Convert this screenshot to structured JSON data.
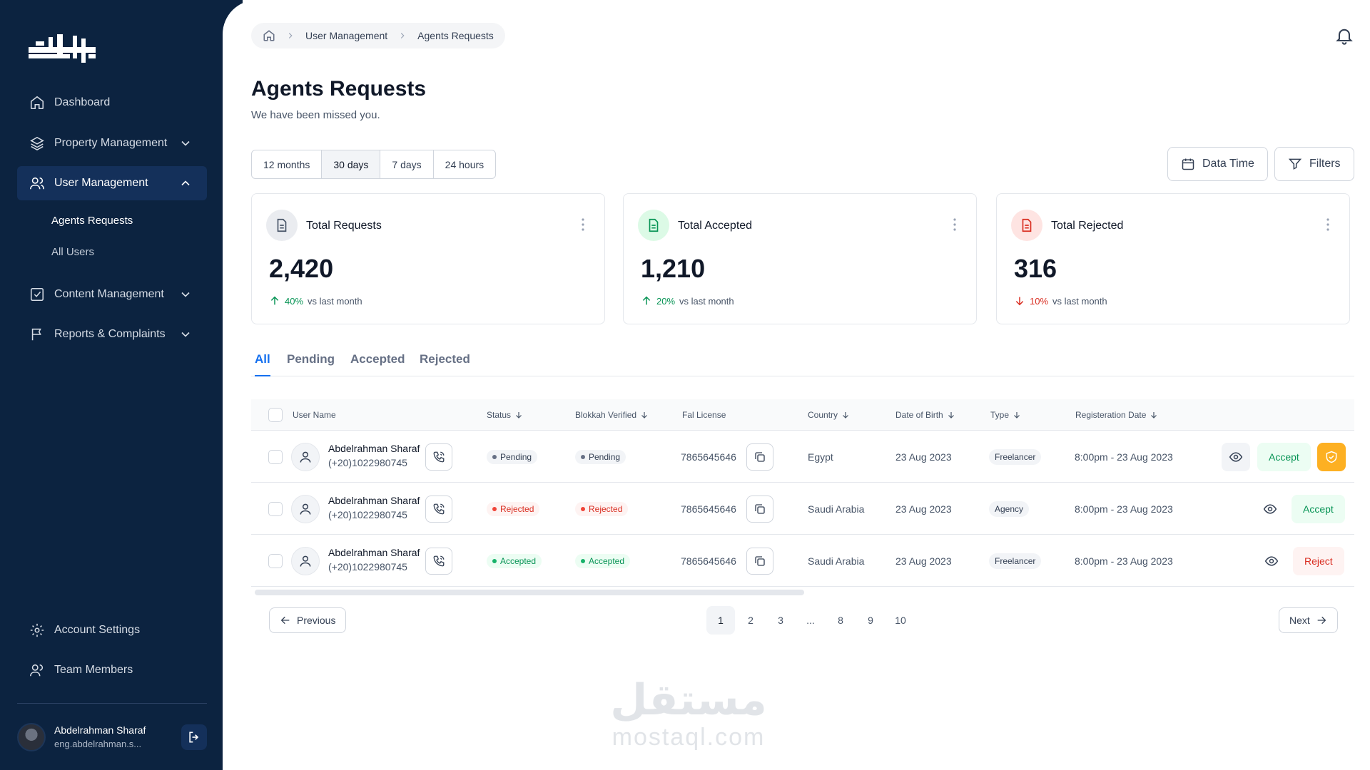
{
  "sidebar": {
    "nav": [
      {
        "label": "Dashboard"
      },
      {
        "label": "Property Management"
      },
      {
        "label": "User Management"
      },
      {
        "label": "Content Management"
      },
      {
        "label": "Reports & Complaints"
      }
    ],
    "sub_items": [
      {
        "label": "Agents Requests"
      },
      {
        "label": "All Users"
      }
    ],
    "bottom": [
      {
        "label": "Account Settings"
      },
      {
        "label": "Team Members"
      }
    ],
    "profile": {
      "name": "Abdelrahman Sharaf",
      "email": "eng.abdelrahman.s..."
    }
  },
  "breadcrumb": [
    "User Management",
    "Agents Requests"
  ],
  "header": {
    "title": "Agents Requests",
    "subtitle": "We have been missed you."
  },
  "range_filters": [
    "12 months",
    "30 days",
    "7 days",
    "24 hours"
  ],
  "range_selected": "30 days",
  "toolbar": {
    "date_label": "Data Time",
    "filters_label": "Filters"
  },
  "stats": [
    {
      "title": "Total Requests",
      "value": "2,420",
      "change": "40%",
      "direction": "up",
      "note": "vs last month"
    },
    {
      "title": "Total Accepted",
      "value": "1,210",
      "change": "20%",
      "direction": "up",
      "note": "vs last month"
    },
    {
      "title": "Total Rejected",
      "value": "316",
      "change": "10%",
      "direction": "down",
      "note": "vs last month"
    }
  ],
  "tabs": [
    "All",
    "Pending",
    "Accepted",
    "Rejected"
  ],
  "active_tab": "All",
  "table": {
    "columns": [
      "User Name",
      "Status",
      "Blokkah Verified",
      "Fal License",
      "Country",
      "Date of Birth",
      "Type",
      "Registeration Date"
    ],
    "rows": [
      {
        "name": "Abdelrahman Sharaf",
        "phone": "(+20)1022980745",
        "status": "Pending",
        "verified": "Pending",
        "license": "7865645646",
        "country": "Egypt",
        "dob": "23 Aug 2023",
        "type": "Freelancer",
        "registered": "8:00pm - 23 Aug 2023",
        "action": "Accept"
      },
      {
        "name": "Abdelrahman Sharaf",
        "phone": "(+20)1022980745",
        "status": "Rejected",
        "verified": "Rejected",
        "license": "7865645646",
        "country": "Saudi Arabia",
        "dob": "23 Aug 2023",
        "type": "Agency",
        "registered": "8:00pm - 23 Aug 2023",
        "action": "Accept"
      },
      {
        "name": "Abdelrahman Sharaf",
        "phone": "(+20)1022980745",
        "status": "Accepted",
        "verified": "Accepted",
        "license": "7865645646",
        "country": "Saudi Arabia",
        "dob": "23 Aug 2023",
        "type": "Freelancer",
        "registered": "8:00pm - 23 Aug 2023",
        "action": "Reject"
      }
    ]
  },
  "pagination": {
    "previous": "Previous",
    "next": "Next",
    "pages": [
      "1",
      "2",
      "3",
      "...",
      "8",
      "9",
      "10"
    ],
    "current": "1"
  },
  "watermark": {
    "arabic": "مستقل",
    "latin": "mostaql.com"
  },
  "colors": {
    "sidebar": "#0c2340",
    "accent": "#1570ef",
    "success": "#079455",
    "danger": "#d92d20",
    "warning": "#fdb022"
  }
}
